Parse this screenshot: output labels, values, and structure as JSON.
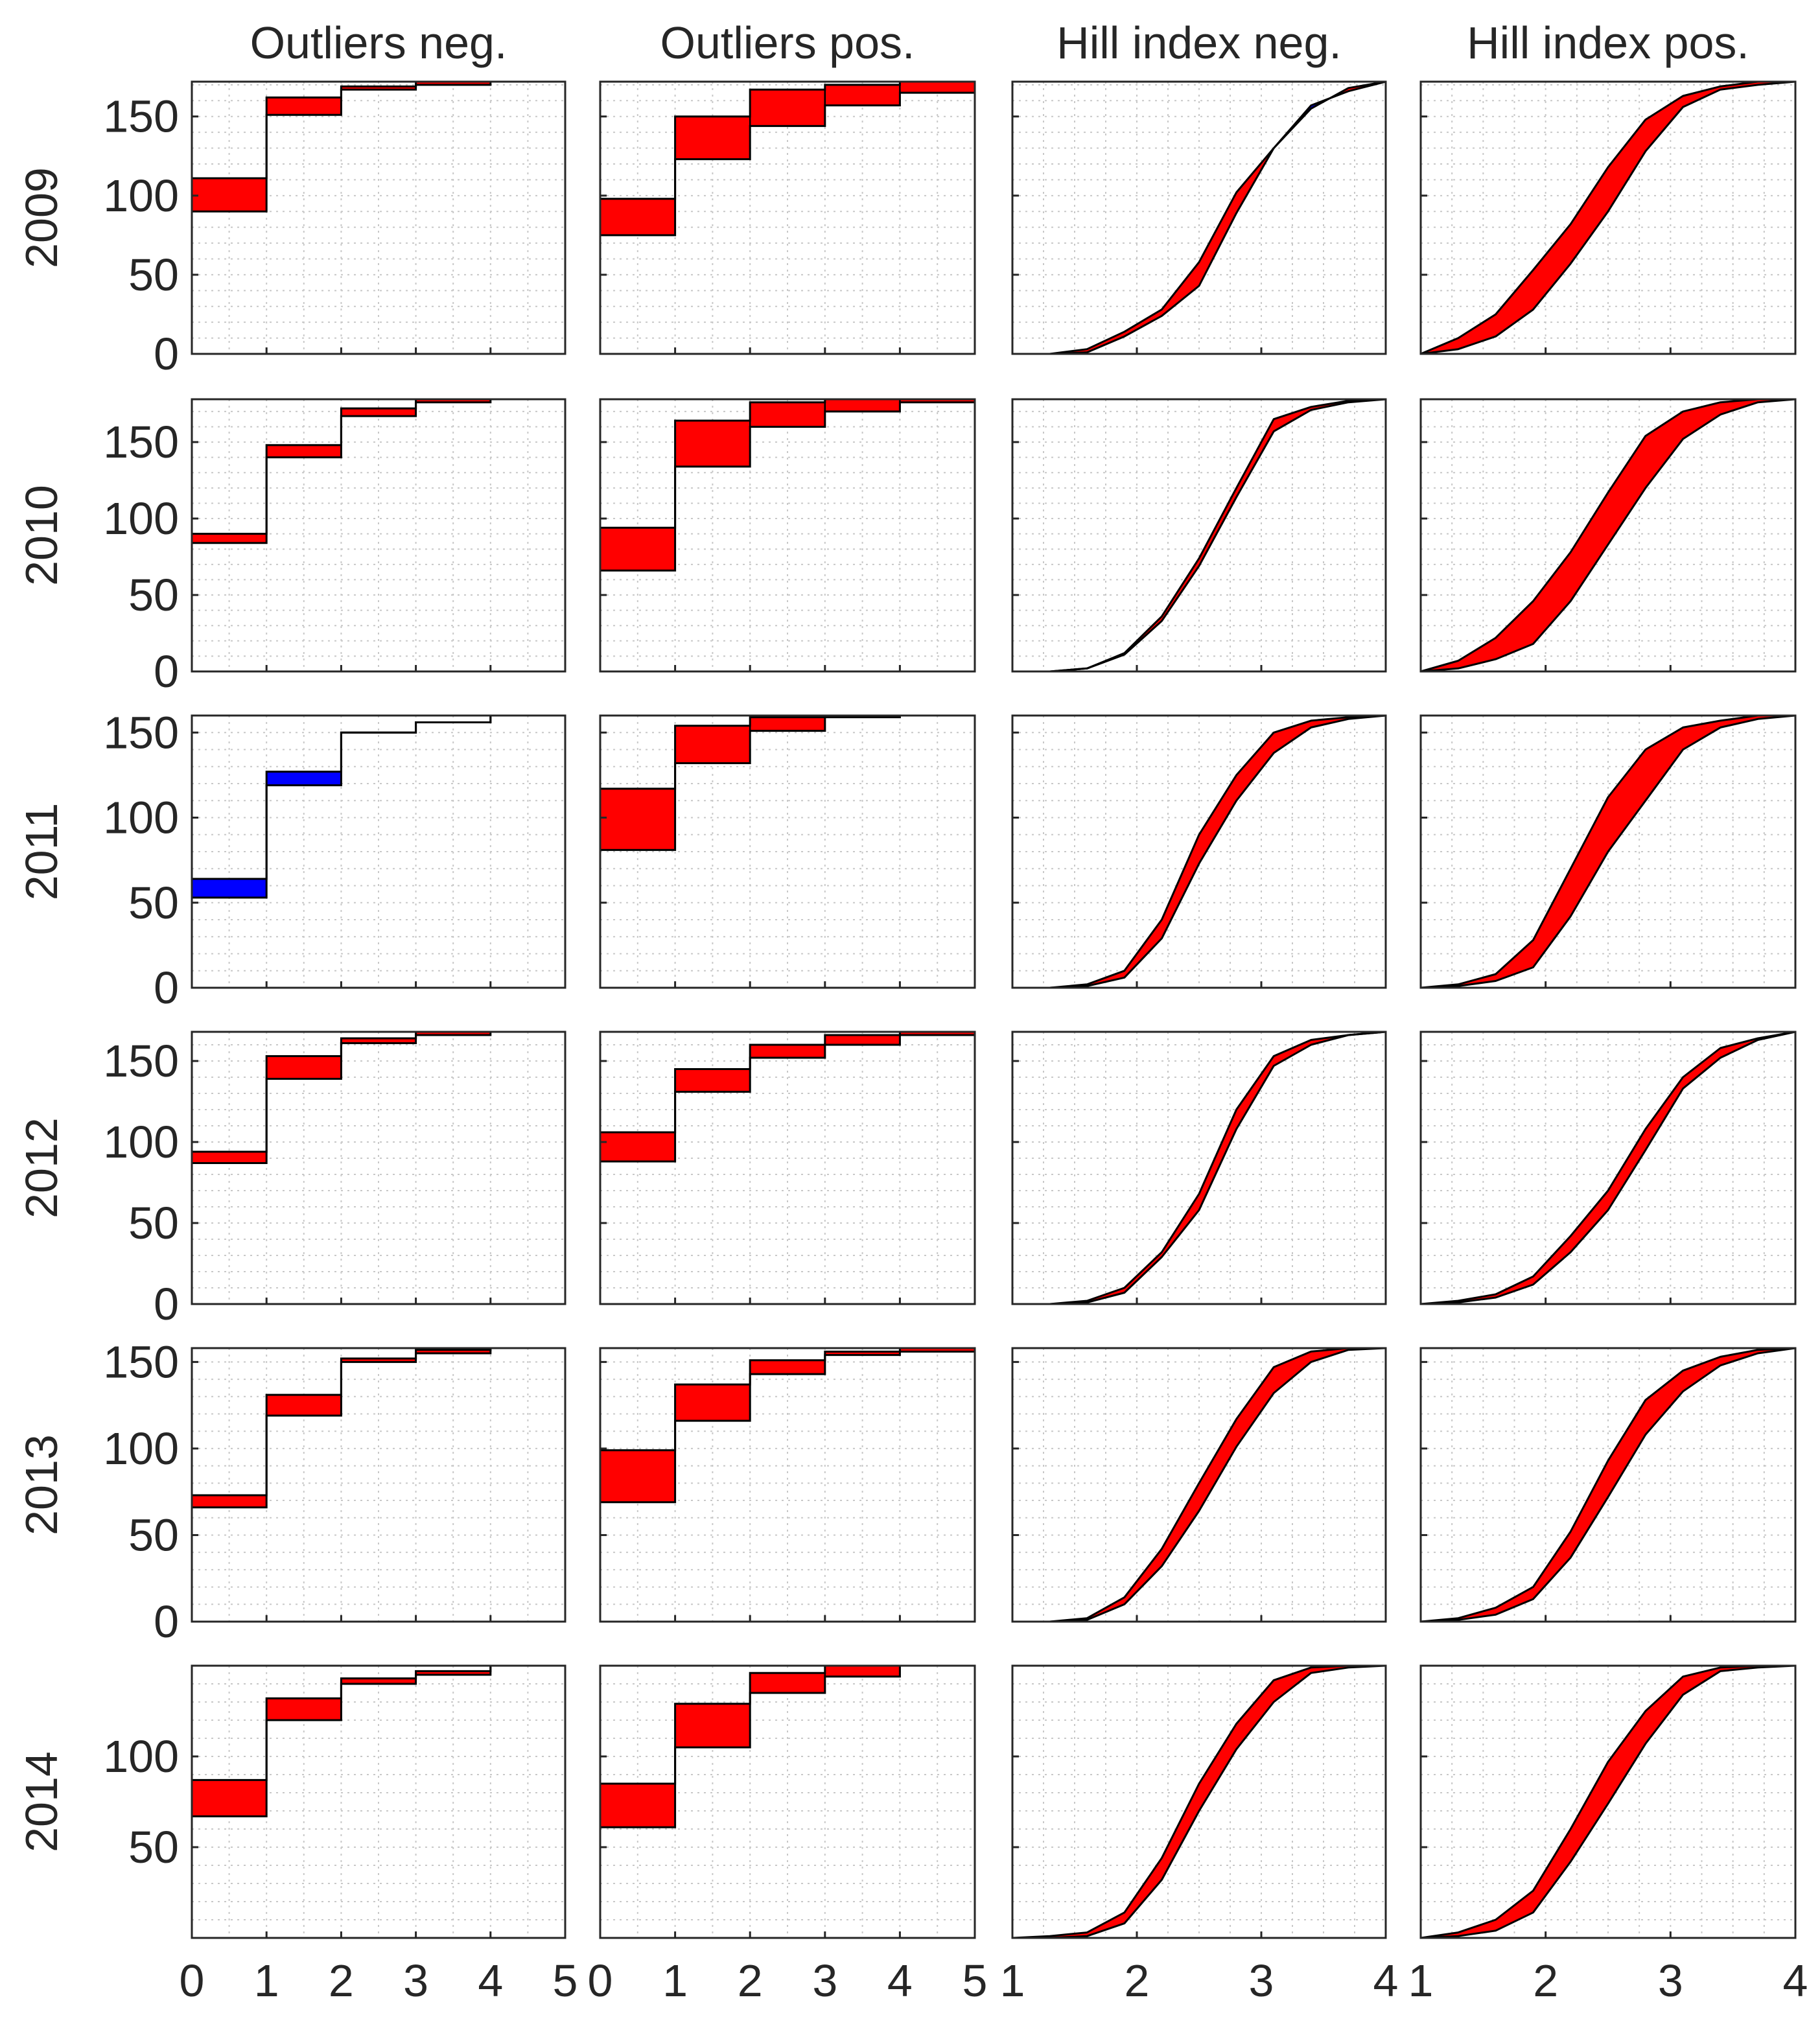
{
  "chart_data": {
    "type": "area",
    "layout": "grid 6 rows x 4 columns, shared x-axis per column, per-row y-axis on first column",
    "column_titles": [
      "Outliers neg.",
      "Outliers pos.",
      "Hill index neg.",
      "Hill index pos."
    ],
    "row_labels": [
      "2009",
      "2010",
      "2011",
      "2012",
      "2013",
      "2014"
    ],
    "colors": {
      "higher": "#ff0000",
      "lower": "#0000ff",
      "outline": "#000000",
      "grid": "#c8c8c8",
      "text": "#262626"
    },
    "x_axes": [
      {
        "range": [
          0,
          5
        ],
        "ticks": [
          0,
          1,
          2,
          3,
          4,
          5
        ]
      },
      {
        "range": [
          0,
          5
        ],
        "ticks": [
          0,
          1,
          2,
          3,
          4,
          5
        ]
      },
      {
        "range": [
          1,
          4
        ],
        "ticks": [
          1,
          2,
          3,
          4
        ]
      },
      {
        "range": [
          1,
          4
        ],
        "ticks": [
          1,
          2,
          3,
          4
        ]
      }
    ],
    "rows": [
      {
        "label": "2009",
        "ylim": [
          0,
          172
        ],
        "yticks": [
          0,
          50,
          100,
          150
        ],
        "panels": [
          {
            "kind": "step",
            "a": [
              111,
              162,
              169,
              172,
              172
            ],
            "b": [
              90,
              151,
              167,
              170,
              172
            ]
          },
          {
            "kind": "step",
            "a": [
              98,
              150,
              167,
              170,
              172
            ],
            "b": [
              75,
              123,
              144,
              157,
              165
            ]
          },
          {
            "kind": "curve",
            "a": [
              0,
              0,
              3,
              14,
              28,
              58,
              102,
              130,
              155,
              168,
              172
            ],
            "b": [
              0,
              0,
              1,
              11,
              24,
              43,
              89,
              130,
              157,
              166,
              172
            ]
          },
          {
            "kind": "curve",
            "a": [
              0,
              10,
              25,
              53,
              82,
              118,
              148,
              163,
              169,
              172,
              172
            ],
            "b": [
              0,
              3,
              11,
              28,
              57,
              90,
              128,
              156,
              167,
              170,
              172
            ]
          }
        ]
      },
      {
        "label": "2010",
        "ylim": [
          0,
          178
        ],
        "yticks": [
          0,
          50,
          100,
          150
        ],
        "panels": [
          {
            "kind": "step",
            "a": [
              90,
              148,
              172,
              178,
              178
            ],
            "b": [
              84,
              140,
              167,
              176,
              178
            ]
          },
          {
            "kind": "step",
            "a": [
              94,
              164,
              176,
              178,
              178
            ],
            "b": [
              66,
              134,
              160,
              170,
              176
            ]
          },
          {
            "kind": "curve",
            "a": [
              0,
              0,
              2,
              12,
              36,
              74,
              120,
              165,
              173,
              177,
              178
            ],
            "b": [
              0,
              0,
              2,
              11,
              33,
              69,
              114,
              157,
              171,
              176,
              178
            ]
          },
          {
            "kind": "curve",
            "a": [
              0,
              7,
              22,
              46,
              78,
              117,
              154,
              170,
              176,
              178,
              178
            ],
            "b": [
              0,
              2,
              8,
              18,
              46,
              83,
              120,
              152,
              168,
              176,
              178
            ]
          }
        ]
      },
      {
        "label": "2011",
        "ylim": [
          0,
          160
        ],
        "yticks": [
          0,
          50,
          100,
          150
        ],
        "panels": [
          {
            "kind": "step",
            "a": [
              53,
              119,
              150,
              156,
              160
            ],
            "b": [
              64,
              127,
              150,
              156,
              160
            ]
          },
          {
            "kind": "step",
            "a": [
              117,
              154,
              159,
              160,
              160
            ],
            "b": [
              81,
              132,
              151,
              159,
              160
            ]
          },
          {
            "kind": "curve",
            "a": [
              0,
              0,
              2,
              10,
              40,
              90,
              125,
              150,
              157,
              159,
              160
            ],
            "b": [
              0,
              0,
              1,
              6,
              29,
              73,
              110,
              138,
              153,
              158,
              160
            ]
          },
          {
            "kind": "curve",
            "a": [
              0,
              2,
              8,
              28,
              70,
              112,
              140,
              153,
              157,
              160,
              160
            ],
            "b": [
              0,
              1,
              4,
              12,
              42,
              80,
              110,
              140,
              153,
              158,
              160
            ]
          }
        ]
      },
      {
        "label": "2012",
        "ylim": [
          0,
          168
        ],
        "yticks": [
          0,
          50,
          100,
          150
        ],
        "panels": [
          {
            "kind": "step",
            "a": [
              94,
              153,
              164,
              168,
              168
            ],
            "b": [
              87,
              139,
              161,
              166,
              168
            ]
          },
          {
            "kind": "step",
            "a": [
              106,
              145,
              160,
              166,
              168
            ],
            "b": [
              88,
              131,
              152,
              160,
              166
            ]
          },
          {
            "kind": "curve",
            "a": [
              0,
              0,
              2,
              10,
              32,
              68,
              120,
              153,
              163,
              166,
              168
            ],
            "b": [
              0,
              0,
              1,
              7,
              29,
              58,
              108,
              147,
              160,
              166,
              168
            ]
          },
          {
            "kind": "curve",
            "a": [
              0,
              2,
              6,
              17,
              42,
              70,
              108,
              140,
              158,
              164,
              168
            ],
            "b": [
              0,
              1,
              4,
              12,
              32,
              58,
              95,
              133,
              152,
              163,
              168
            ]
          }
        ]
      },
      {
        "label": "2013",
        "ylim": [
          0,
          158
        ],
        "yticks": [
          0,
          50,
          100,
          150
        ],
        "panels": [
          {
            "kind": "step",
            "a": [
              73,
              131,
              152,
              157,
              158
            ],
            "b": [
              66,
              119,
              150,
              155,
              158
            ]
          },
          {
            "kind": "step",
            "a": [
              99,
              137,
              151,
              156,
              158
            ],
            "b": [
              69,
              116,
              143,
              154,
              156
            ]
          },
          {
            "kind": "curve",
            "a": [
              0,
              0,
              2,
              14,
              42,
              80,
              117,
              147,
              156,
              158,
              158
            ],
            "b": [
              0,
              0,
              1,
              10,
              32,
              64,
              101,
              132,
              150,
              157,
              158
            ]
          },
          {
            "kind": "curve",
            "a": [
              0,
              2,
              8,
              20,
              52,
              93,
              128,
              145,
              153,
              157,
              158
            ],
            "b": [
              0,
              1,
              4,
              13,
              37,
              72,
              108,
              133,
              148,
              155,
              158
            ]
          }
        ]
      },
      {
        "label": "2014",
        "ylim": [
          0,
          150
        ],
        "yticks": [
          50,
          100
        ],
        "panels": [
          {
            "kind": "step",
            "a": [
              87,
              132,
              143,
              147,
              150
            ],
            "b": [
              67,
              120,
              140,
              145,
              150
            ]
          },
          {
            "kind": "step",
            "a": [
              85,
              129,
              146,
              150,
              150
            ],
            "b": [
              61,
              105,
              135,
              144,
              150
            ]
          },
          {
            "kind": "curve",
            "a": [
              0,
              1,
              3,
              14,
              44,
              85,
              118,
              142,
              149,
              150,
              150
            ],
            "b": [
              0,
              0,
              1,
              8,
              32,
              70,
              104,
              130,
              146,
              149,
              150
            ]
          },
          {
            "kind": "curve",
            "a": [
              0,
              3,
              10,
              26,
              60,
              97,
              125,
              144,
              149,
              150,
              150
            ],
            "b": [
              0,
              1,
              4,
              14,
              42,
              74,
              107,
              134,
              147,
              149,
              150
            ]
          }
        ]
      }
    ]
  }
}
